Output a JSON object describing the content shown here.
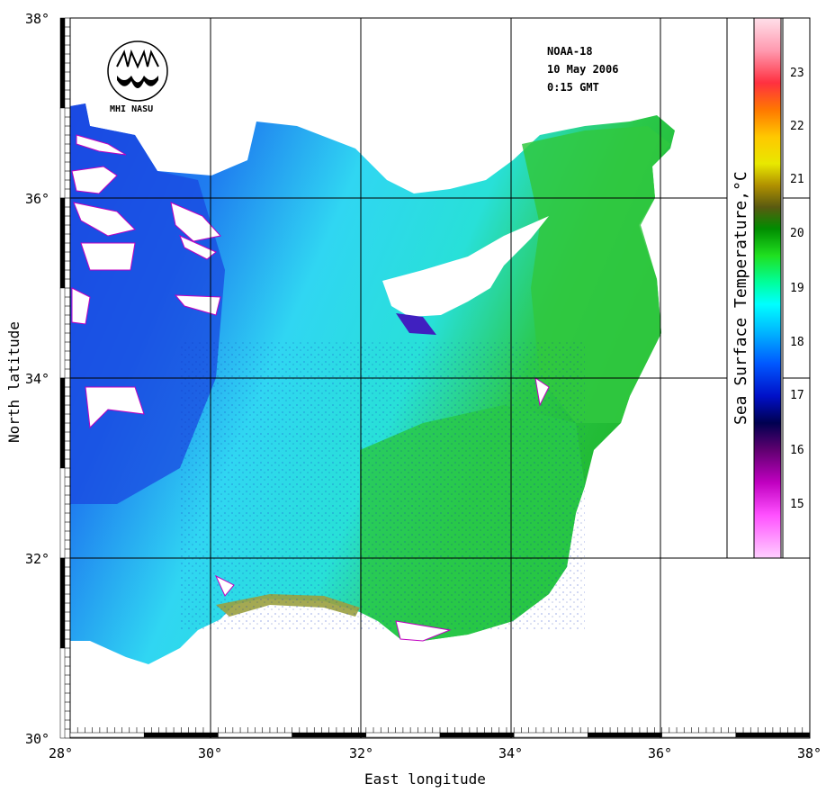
{
  "header": {
    "satellite": "NOAA-18",
    "date": "10 May 2006",
    "time": "0:15 GMT",
    "logo_text": "MHI NASU"
  },
  "axes": {
    "x_title": "East longitude",
    "y_title": "North latitude",
    "x_ticks": [
      "28°",
      "30°",
      "32°",
      "34°",
      "36°",
      "38°"
    ],
    "y_ticks": [
      "38°",
      "36°",
      "34°",
      "32°",
      "30°"
    ]
  },
  "legend": {
    "title": "Sea Surface Temperature,°C",
    "ticks": [
      "23",
      "22",
      "21",
      "20",
      "19",
      "18",
      "17",
      "16",
      "15"
    ],
    "colors": {
      "ramp": [
        "#ffe0f0",
        "#ff40a0",
        "#ff3030",
        "#ff8000",
        "#ffd000",
        "#f0f000",
        "#c0a000",
        "#606000",
        "#00a000",
        "#20e000",
        "#00ffa0",
        "#00ffff",
        "#00c0ff",
        "#0060ff",
        "#0010c0",
        "#000060",
        "#600060",
        "#c000c0",
        "#ff40ff",
        "#ffc0ff"
      ]
    }
  },
  "map": {
    "colors": {
      "land": "#ffffff",
      "cold_sea": "#1e5cf0",
      "mid_sea": "#27d3f0",
      "warm_sea": "#27c93c",
      "coastal_warm": "#9a9a40",
      "cloud": "#ffffff"
    }
  }
}
